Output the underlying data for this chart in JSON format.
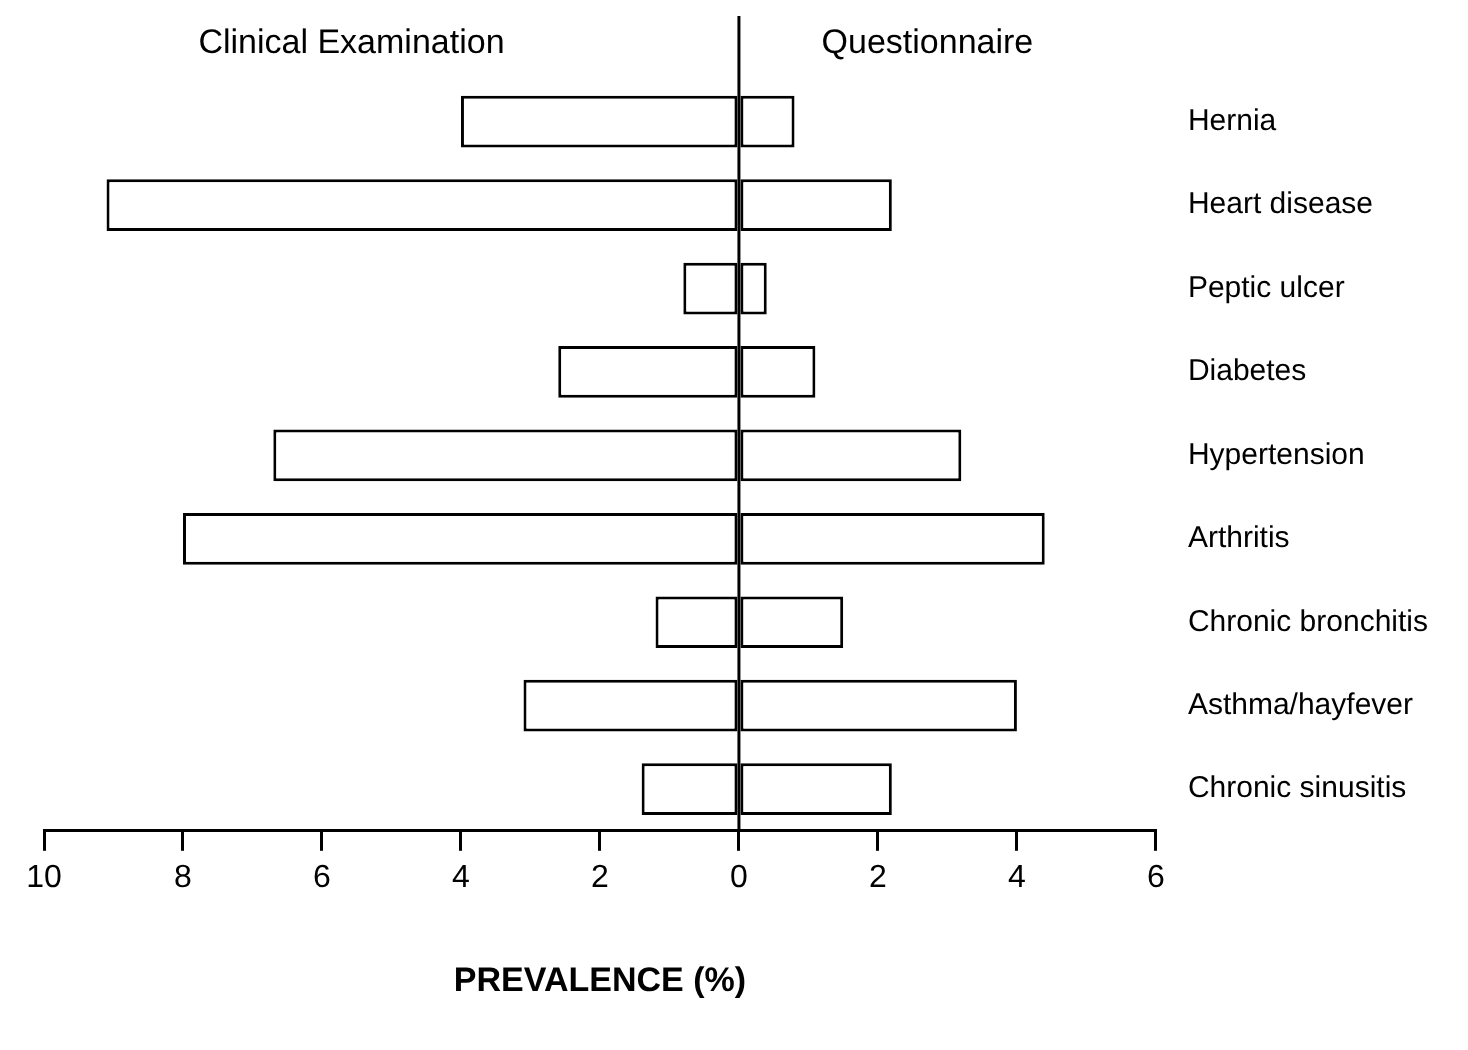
{
  "chart_data": {
    "type": "bar",
    "orientation": "horizontal",
    "stacked": true,
    "xlabel": "PREVALENCE (%)",
    "categories": [
      "Hernia",
      "Heart disease",
      "Peptic ulcer",
      "Diabetes",
      "Hypertension",
      "Arthritis",
      "Chronic bronchitis",
      "Asthma/hayfever",
      "Chronic sinusitis"
    ],
    "series": [
      {
        "name": "Clinical Examination",
        "color": "#ffffff",
        "values": [
          -4.0,
          -9.1,
          -0.8,
          -2.6,
          -6.7,
          -8.0,
          -1.2,
          -3.1,
          -1.4
        ]
      },
      {
        "name": "Questionnaire",
        "color": "#ffffff",
        "values": [
          0.8,
          2.2,
          0.4,
          1.1,
          3.2,
          4.4,
          1.5,
          4.0,
          2.2
        ]
      }
    ],
    "xlim": [
      -10,
      6
    ],
    "xticks": [
      {
        "value": -10,
        "label": "10"
      },
      {
        "value": -8,
        "label": "8"
      },
      {
        "value": -6,
        "label": "6"
      },
      {
        "value": -4,
        "label": "4"
      },
      {
        "value": -2,
        "label": "2"
      },
      0,
      2,
      4,
      6
    ],
    "ref_lines": [
      {
        "axis": "x",
        "value": 0,
        "color": "#000000"
      }
    ],
    "grid": false,
    "legend": false
  }
}
